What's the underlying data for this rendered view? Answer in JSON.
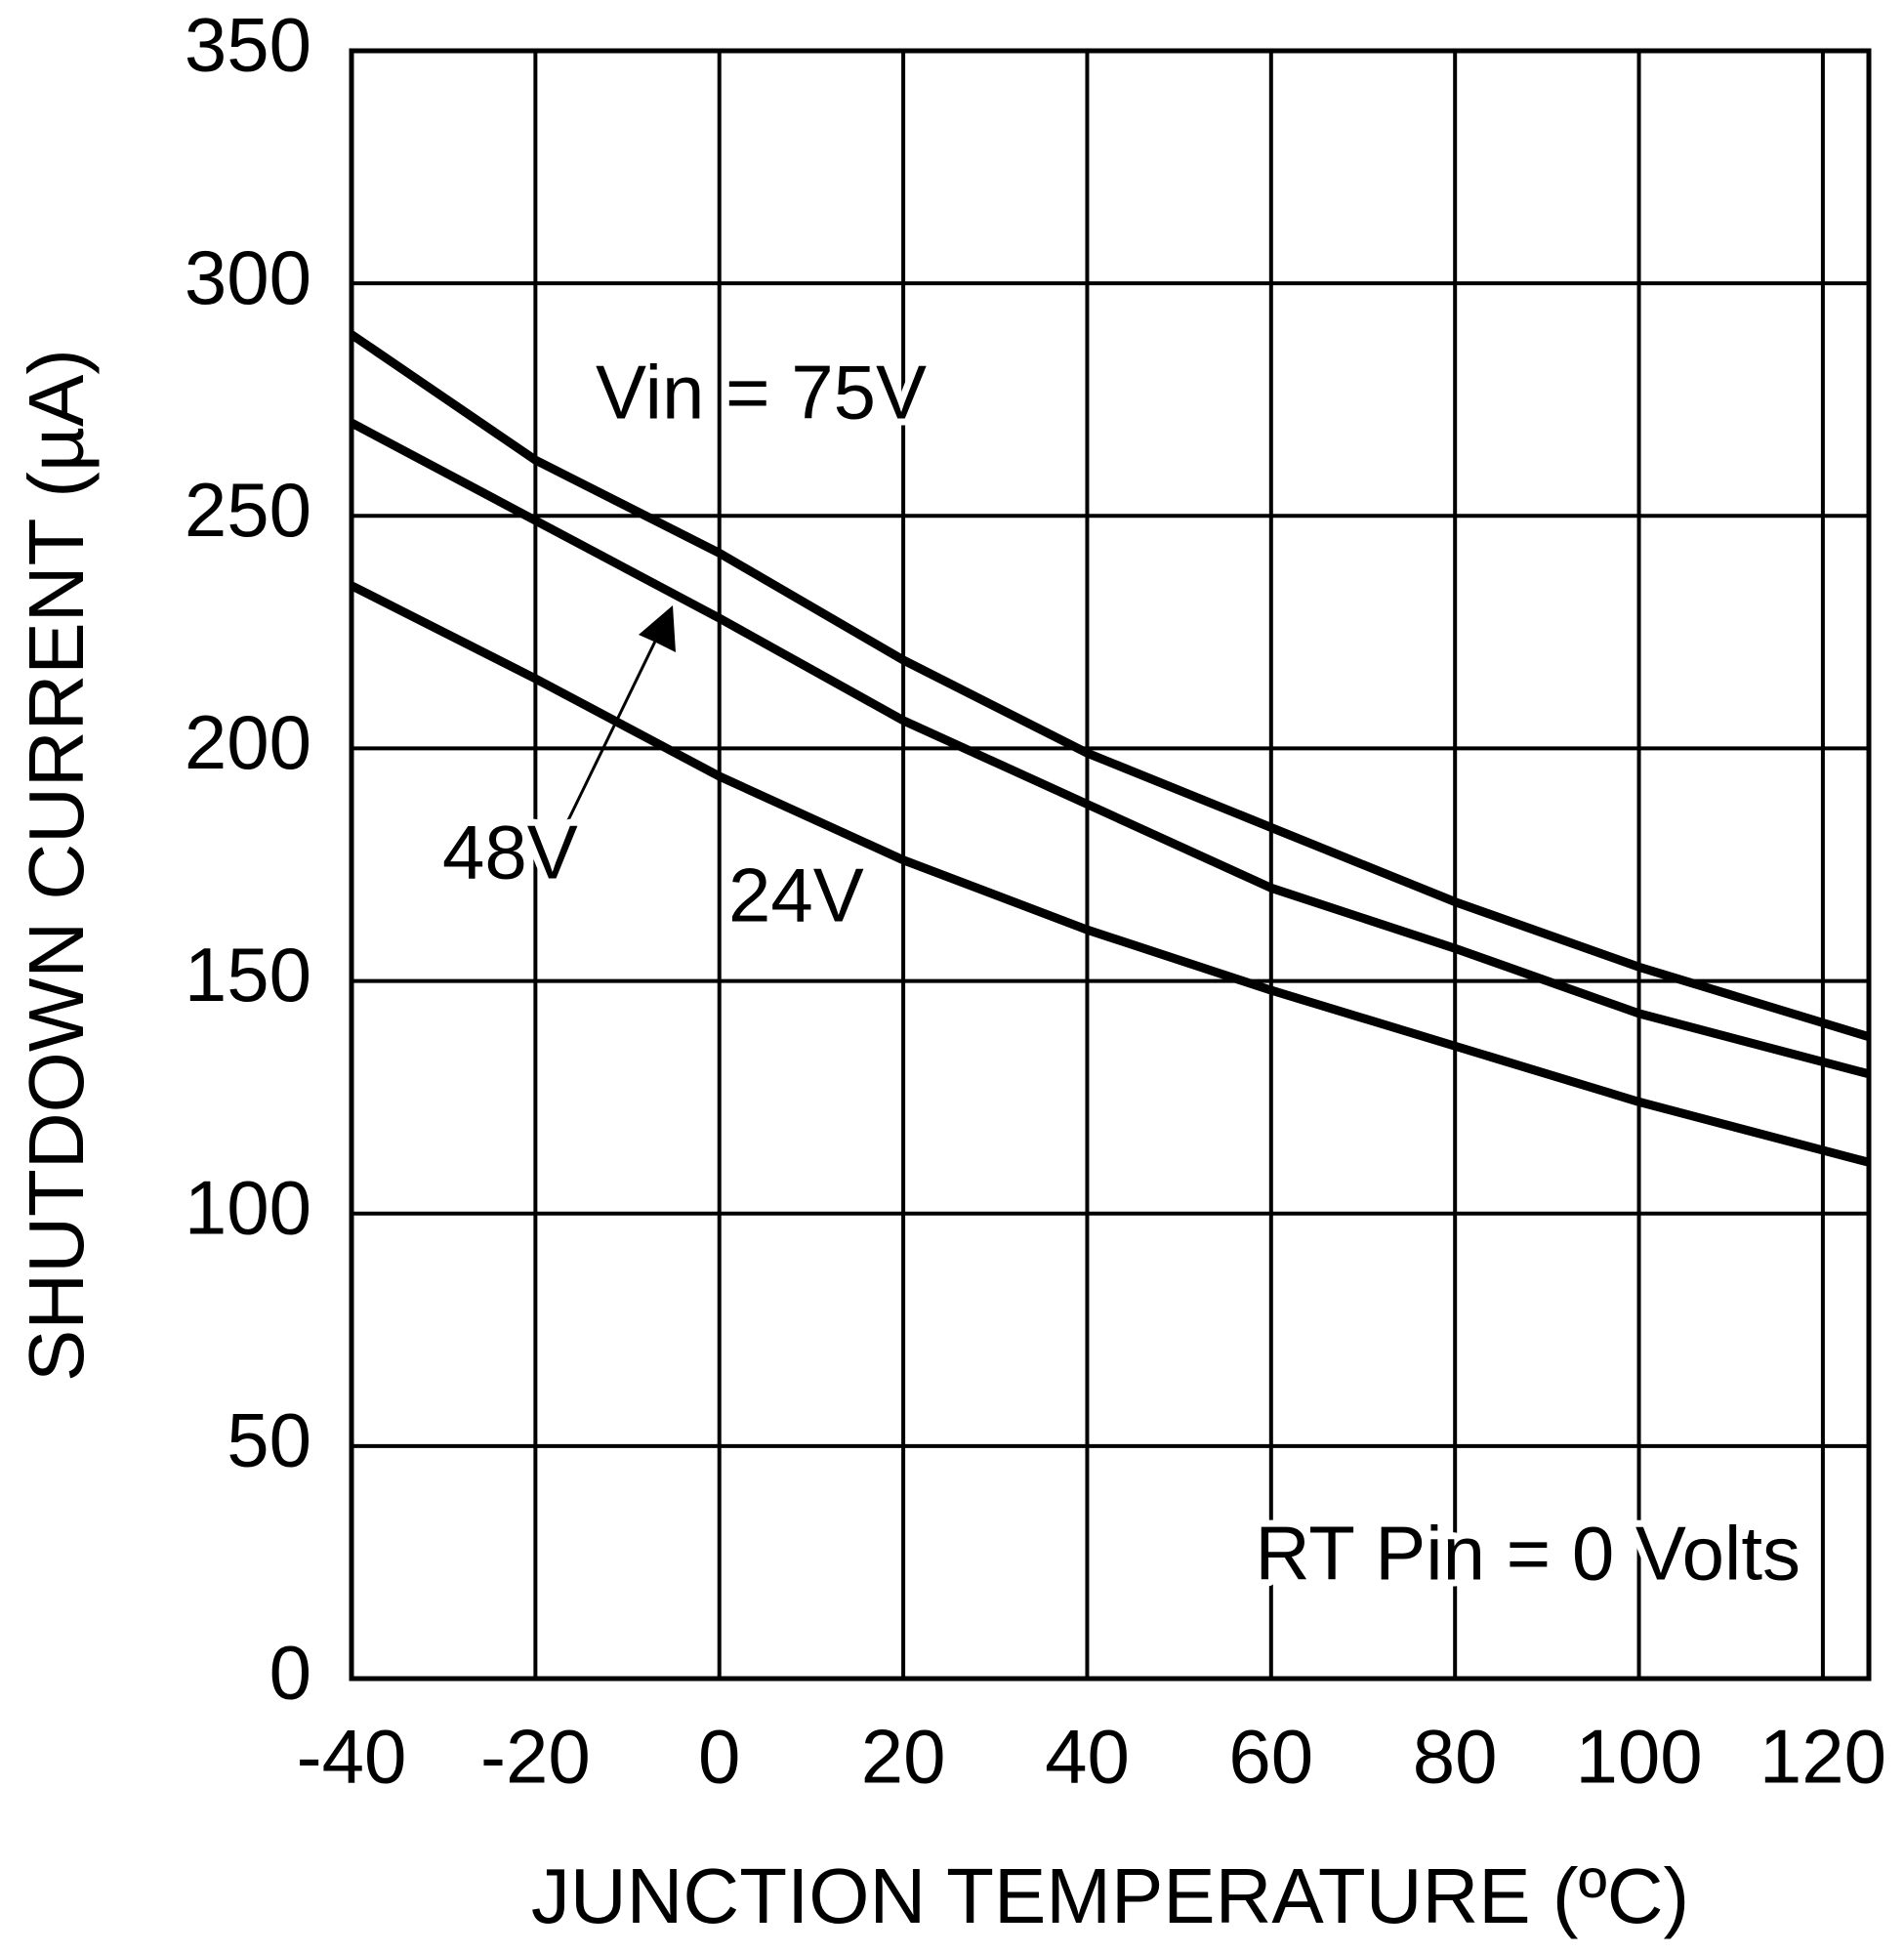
{
  "chart_data": {
    "type": "line",
    "x_label": "JUNCTION TEMPERATURE (ºC)",
    "y_label": "SHUTDOWN CURRENT (µA)",
    "xlim": [
      -40,
      125
    ],
    "ylim": [
      0,
      350
    ],
    "xticks": [
      -40,
      -20,
      0,
      20,
      40,
      60,
      80,
      100,
      120
    ],
    "yticks": [
      0,
      50,
      100,
      150,
      200,
      250,
      300,
      350
    ],
    "grid": true,
    "x": [
      -40,
      -20,
      0,
      20,
      40,
      60,
      80,
      100,
      125
    ],
    "series": [
      {
        "name": "Vin = 75V",
        "color": "#000000",
        "values": [
          289,
          262,
          242,
          219,
          199,
          183,
          167,
          153,
          138
        ]
      },
      {
        "name": "48V",
        "color": "#000000",
        "values": [
          270,
          249,
          228,
          206,
          188,
          170,
          157,
          143,
          130
        ]
      },
      {
        "name": "24V",
        "color": "#000000",
        "values": [
          235,
          215,
          194,
          176,
          161,
          148,
          136,
          124,
          111
        ]
      }
    ],
    "annotation": "RT Pin = 0 Volts"
  }
}
